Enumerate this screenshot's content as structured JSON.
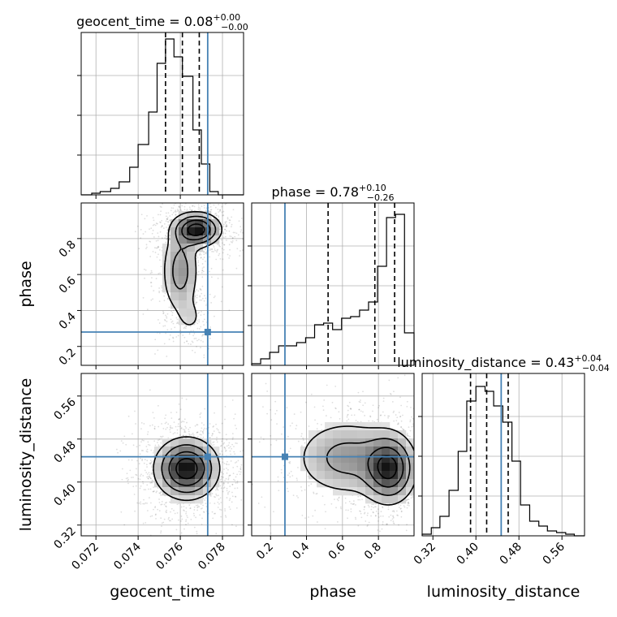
{
  "figure": {
    "params": [
      "geocent_time",
      "phase",
      "luminosity_distance"
    ],
    "injection_color": "#4682b4",
    "axis_labels": [
      "geocent_time",
      "phase",
      "luminosity_distance"
    ]
  },
  "chart_data": {
    "type": "corner",
    "titles": [
      {
        "param": "geocent_time",
        "median": "0.08",
        "plus": "+0.00",
        "minus": "−0.00"
      },
      {
        "param": "phase",
        "median": "0.78",
        "plus": "+0.10",
        "minus": "−0.26"
      },
      {
        "param": "luminosity_distance",
        "median": "0.43",
        "plus": "+0.04",
        "minus": "−0.04"
      }
    ],
    "ranges": {
      "geocent_time": [
        0.0713,
        0.079
      ],
      "phase": [
        0.095,
        0.998
      ],
      "luminosity_distance": [
        0.3,
        0.602
      ]
    },
    "ticks": {
      "geocent_time": {
        "values": [
          0.072,
          0.074,
          0.076,
          0.078
        ],
        "labels": [
          "0.072",
          "0.074",
          "0.076",
          "0.078"
        ]
      },
      "phase": {
        "values": [
          0.2,
          0.4,
          0.6,
          0.8
        ],
        "labels": [
          "0.2",
          "0.4",
          "0.6",
          "0.8"
        ]
      },
      "luminosity_distance": {
        "values": [
          0.32,
          0.4,
          0.48,
          0.56
        ],
        "labels": [
          "0.32",
          "0.40",
          "0.48",
          "0.56"
        ]
      }
    },
    "injection": {
      "geocent_time": 0.0773,
      "phase": 0.28,
      "luminosity_distance": 0.447
    },
    "quantiles": {
      "geocent_time": [
        0.0753,
        0.0761,
        0.0769
      ],
      "phase": [
        0.52,
        0.78,
        0.89
      ],
      "luminosity_distance": [
        0.39,
        0.42,
        0.46
      ]
    },
    "histograms": {
      "geocent_time": {
        "edges": [
          0.0713,
          0.0718,
          0.0722,
          0.0727,
          0.0731,
          0.0736,
          0.074,
          0.0745,
          0.0749,
          0.0753,
          0.0757,
          0.0761,
          0.0766,
          0.077,
          0.0774,
          0.0778,
          0.0783,
          0.0787,
          0.079
        ],
        "counts": [
          0,
          0.01,
          0.02,
          0.04,
          0.08,
          0.17,
          0.31,
          0.51,
          0.81,
          0.96,
          0.85,
          0.73,
          0.4,
          0.19,
          0.02,
          0,
          0,
          0
        ]
      },
      "phase": {
        "edges": [
          0.095,
          0.145,
          0.195,
          0.245,
          0.295,
          0.345,
          0.395,
          0.445,
          0.495,
          0.545,
          0.595,
          0.645,
          0.695,
          0.745,
          0.795,
          0.845,
          0.895,
          0.945,
          0.998
        ],
        "counts": [
          0.01,
          0.04,
          0.08,
          0.12,
          0.12,
          0.14,
          0.17,
          0.25,
          0.26,
          0.22,
          0.29,
          0.3,
          0.34,
          0.39,
          0.61,
          0.91,
          0.93,
          0.2
        ]
      },
      "luminosity_distance": {
        "edges": [
          0.3,
          0.317,
          0.333,
          0.35,
          0.367,
          0.383,
          0.4,
          0.417,
          0.433,
          0.45,
          0.467,
          0.483,
          0.5,
          0.517,
          0.533,
          0.55,
          0.567,
          0.583,
          0.602
        ],
        "counts": [
          0.01,
          0.05,
          0.12,
          0.28,
          0.52,
          0.83,
          0.92,
          0.89,
          0.8,
          0.7,
          0.46,
          0.19,
          0.09,
          0.06,
          0.03,
          0.02,
          0.01,
          0
        ]
      }
    },
    "joint_peaks": {
      "phase_vs_geocent_time": [
        {
          "x": 0.0768,
          "y": 0.85,
          "sx": 0.0006,
          "sy": 0.05,
          "w": 1.0
        },
        {
          "x": 0.076,
          "y": 0.62,
          "sx": 0.0005,
          "sy": 0.14,
          "w": 0.45
        },
        {
          "x": 0.0765,
          "y": 0.36,
          "sx": 0.0004,
          "sy": 0.06,
          "w": 0.15
        }
      ],
      "luminosity_distance_vs_geocent_time": [
        {
          "x": 0.0763,
          "y": 0.425,
          "sx": 0.0008,
          "sy": 0.03,
          "w": 1.0
        }
      ],
      "luminosity_distance_vs_phase": [
        {
          "x": 0.86,
          "y": 0.425,
          "sx": 0.08,
          "sy": 0.035,
          "w": 1.0
        },
        {
          "x": 0.62,
          "y": 0.445,
          "sx": 0.16,
          "sy": 0.04,
          "w": 0.5
        }
      ]
    },
    "grid": true
  }
}
